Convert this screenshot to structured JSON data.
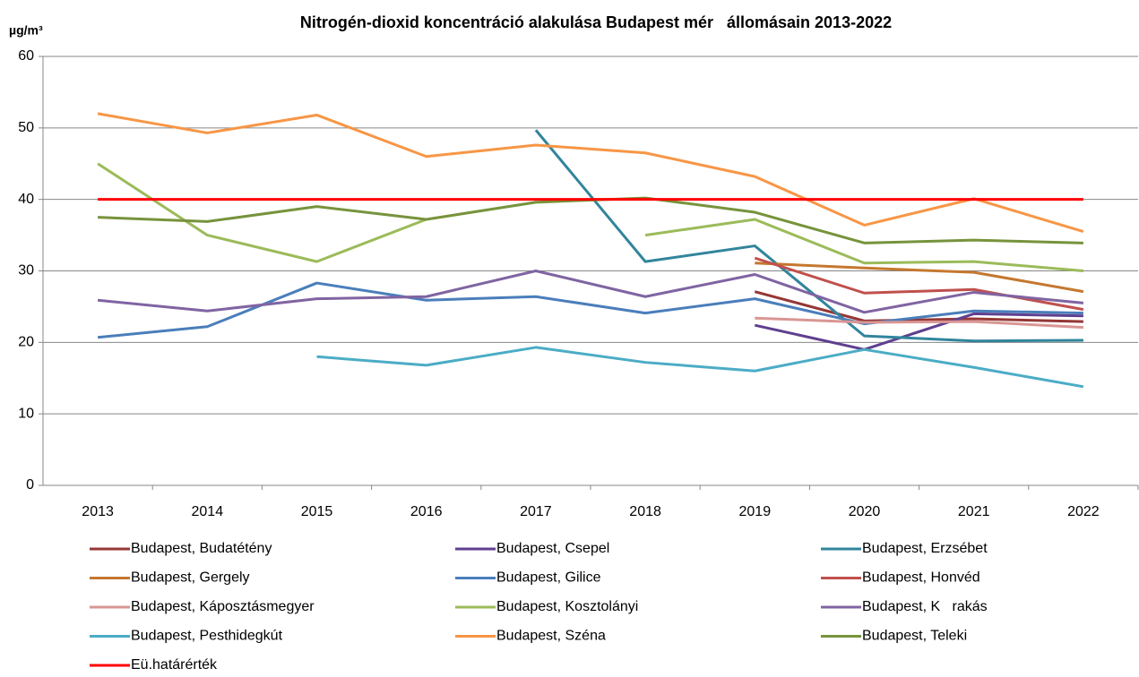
{
  "chart_data": {
    "type": "line",
    "title": "Nitrogén-dioxid koncentráció alakulása Budapest mér   állomásain 2013-2022",
    "y_label": "µg/m³",
    "categories": [
      "2013",
      "2014",
      "2015",
      "2016",
      "2017",
      "2018",
      "2019",
      "2020",
      "2021",
      "2022"
    ],
    "ylim": [
      0,
      60
    ],
    "yticks": [
      0,
      10,
      20,
      30,
      40,
      50,
      60
    ],
    "grid": true,
    "legend": "bottom",
    "series": [
      {
        "name": "Budapest, Budatétény",
        "color": "#953735",
        "values": [
          null,
          null,
          null,
          null,
          null,
          null,
          27.1,
          23.0,
          23.3,
          22.9
        ]
      },
      {
        "name": "Budapest, Csepel",
        "color": "#5f3f8f",
        "values": [
          null,
          null,
          null,
          null,
          null,
          null,
          22.4,
          19.0,
          24.0,
          23.7
        ]
      },
      {
        "name": "Budapest, Erzsébet",
        "color": "#31859c",
        "values": [
          null,
          null,
          null,
          null,
          49.7,
          31.3,
          33.5,
          20.9,
          20.2,
          20.3
        ]
      },
      {
        "name": "Budapest, Gergely",
        "color": "#c5772f",
        "values": [
          null,
          null,
          null,
          null,
          null,
          null,
          31.1,
          30.4,
          29.8,
          27.1
        ]
      },
      {
        "name": "Budapest, Gilice",
        "color": "#4a7ebb",
        "values": [
          20.7,
          22.2,
          28.3,
          25.9,
          26.4,
          24.1,
          26.1,
          22.6,
          24.4,
          24.1
        ]
      },
      {
        "name": "Budapest, Honvéd",
        "color": "#c0504d",
        "values": [
          null,
          null,
          null,
          null,
          null,
          null,
          31.8,
          26.9,
          27.4,
          24.6
        ]
      },
      {
        "name": "Budapest, Káposztásmegyer",
        "color": "#d99694",
        "values": [
          null,
          null,
          null,
          null,
          null,
          null,
          23.4,
          22.8,
          22.9,
          22.1
        ]
      },
      {
        "name": "Budapest, Kosztolányi",
        "color": "#9bbb59",
        "values": [
          45.0,
          35.0,
          31.3,
          37.2,
          null,
          35.0,
          37.2,
          31.1,
          31.3,
          30.0
        ]
      },
      {
        "name": "Budapest, K   rakás",
        "color": "#8064a2",
        "values": [
          25.9,
          24.4,
          26.1,
          26.4,
          30.0,
          26.4,
          29.5,
          24.2,
          27.0,
          25.5
        ]
      },
      {
        "name": "Budapest, Pesthidegkút",
        "color": "#4bacc6",
        "values": [
          null,
          null,
          18.0,
          16.8,
          19.3,
          17.2,
          16.0,
          19.0,
          16.5,
          13.8
        ]
      },
      {
        "name": "Budapest, Széna",
        "color": "#f79646",
        "values": [
          52.0,
          49.3,
          51.8,
          46.0,
          47.6,
          46.5,
          43.2,
          36.4,
          40.1,
          35.5
        ]
      },
      {
        "name": "Budapest, Teleki",
        "color": "#77933c",
        "values": [
          37.5,
          36.9,
          39.0,
          37.2,
          39.6,
          40.2,
          38.2,
          33.9,
          34.3,
          33.9
        ]
      },
      {
        "name": "Eü.határérték",
        "color": "#ff0000",
        "values": [
          40,
          40,
          40,
          40,
          40,
          40,
          40,
          40,
          40,
          40
        ]
      }
    ]
  }
}
